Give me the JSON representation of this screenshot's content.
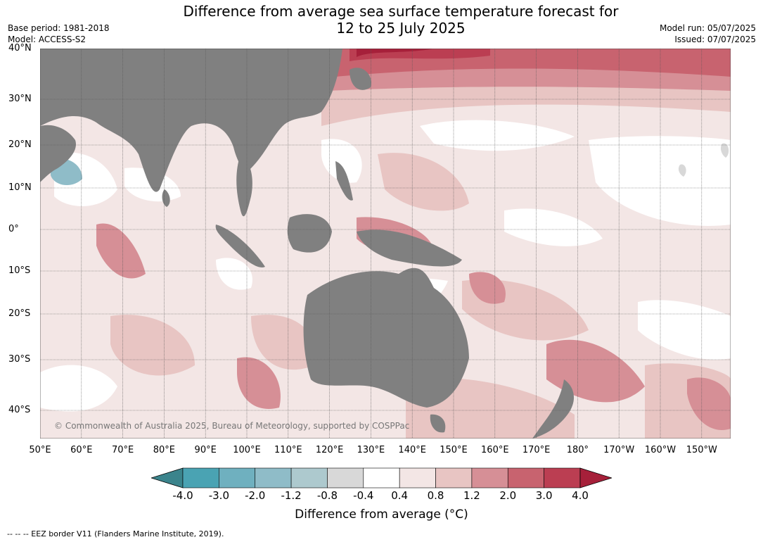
{
  "title_line1": "Difference from average sea surface temperature forecast for",
  "title_line2": "12 to 25 July 2025",
  "base_period": "Base period: 1981-2018",
  "model": "Model: ACCESS-S2",
  "model_run": "Model run: 05/07/2025",
  "issued": "Issued: 07/07/2025",
  "copyright": "© Commonwealth of Australia 2025, Bureau of Meteorology, supported by COSPPac",
  "lat_labels": [
    "40°N",
    "30°N",
    "20°N",
    "10°N",
    "0°",
    "10°S",
    "20°S",
    "30°S",
    "40°S"
  ],
  "lon_labels": [
    "50°E",
    "60°E",
    "70°E",
    "80°E",
    "90°E",
    "100°E",
    "110°E",
    "120°E",
    "130°E",
    "140°E",
    "150°E",
    "160°E",
    "170°E",
    "180°",
    "170°W",
    "160°W",
    "150°W"
  ],
  "colorbar": {
    "ticks": [
      "-4.0",
      "-3.0",
      "-2.0",
      "-1.2",
      "-0.8",
      "-0.4",
      "0.4",
      "0.8",
      "1.2",
      "2.0",
      "3.0",
      "4.0"
    ],
    "colors": [
      "#3b848c",
      "#4aa3b3",
      "#6fb0bf",
      "#8fbcc8",
      "#adc9ce",
      "#d8d8d8",
      "#ffffff",
      "#f3e6e5",
      "#e8c5c3",
      "#d68f96",
      "#c8636f",
      "#bb3e52",
      "#a6203a"
    ],
    "label": "Difference from average (°C)"
  },
  "footer": "--  --  -- EEZ border V11 (Flanders Marine Institute, 2019).",
  "land_color": "#808080"
}
